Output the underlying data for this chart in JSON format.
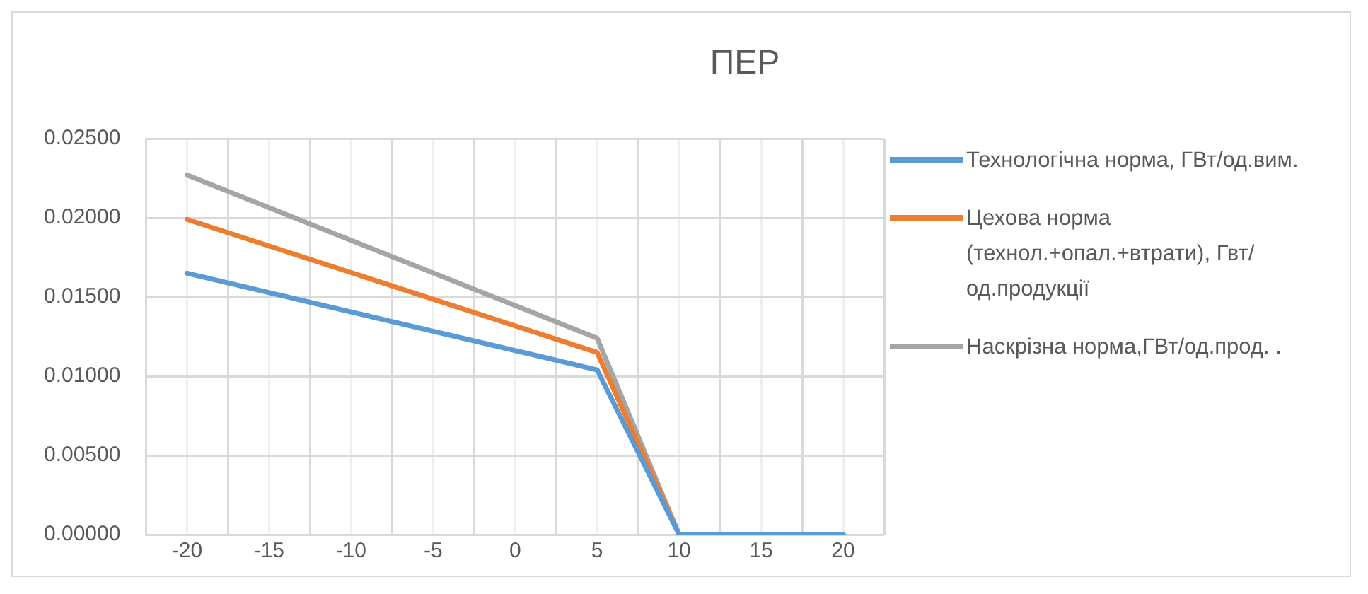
{
  "chart_data": {
    "type": "line",
    "title": "ПЕР",
    "x": [
      -20,
      5,
      10,
      15,
      20
    ],
    "xlim": [
      -22.5,
      22.5
    ],
    "xticks": [
      {
        "value": -22.5,
        "label": null
      },
      -20,
      {
        "value": -17.5,
        "label": null
      },
      -15,
      {
        "value": -12.5,
        "label": null
      },
      -10,
      {
        "value": -7.5,
        "label": null
      },
      -5,
      {
        "value": -2.5,
        "label": null
      },
      0,
      {
        "value": 2.5,
        "label": null
      },
      5,
      {
        "value": 7.5,
        "label": null
      },
      10,
      {
        "value": 12.5,
        "label": null
      },
      15,
      {
        "value": 17.5,
        "label": null
      },
      20,
      {
        "value": 22.5,
        "label": null
      }
    ],
    "ylim": [
      0,
      0.025
    ],
    "yticks": [
      {
        "value": 0,
        "label": "0.00000"
      },
      {
        "value": 0.005,
        "label": "0.00500"
      },
      {
        "value": 0.01,
        "label": "0.01000"
      },
      {
        "value": 0.015,
        "label": "0.01500"
      },
      {
        "value": 0.02,
        "label": "0.02000"
      },
      {
        "value": 0.025,
        "label": "0.02500"
      }
    ],
    "grid": true,
    "legend": "right",
    "marker": "none",
    "line_style": "solid",
    "series": [
      {
        "name": "Технологічна норма, ГВт/од.вим.",
        "color": "#5b9bd5",
        "values": [
          0.0165,
          0.0104,
          0,
          0,
          0
        ]
      },
      {
        "name": "Цехова норма (технол.+опал.+втрати), Гвт/од.продукції",
        "color": "#ed7d31",
        "values": [
          0.0199,
          0.0115,
          0,
          0,
          0
        ]
      },
      {
        "name": "Наскрізна норма,ГВт/од.прод. .",
        "color": "#a5a5a5",
        "values": [
          0.0227,
          0.0124,
          0,
          0,
          0
        ]
      }
    ]
  }
}
